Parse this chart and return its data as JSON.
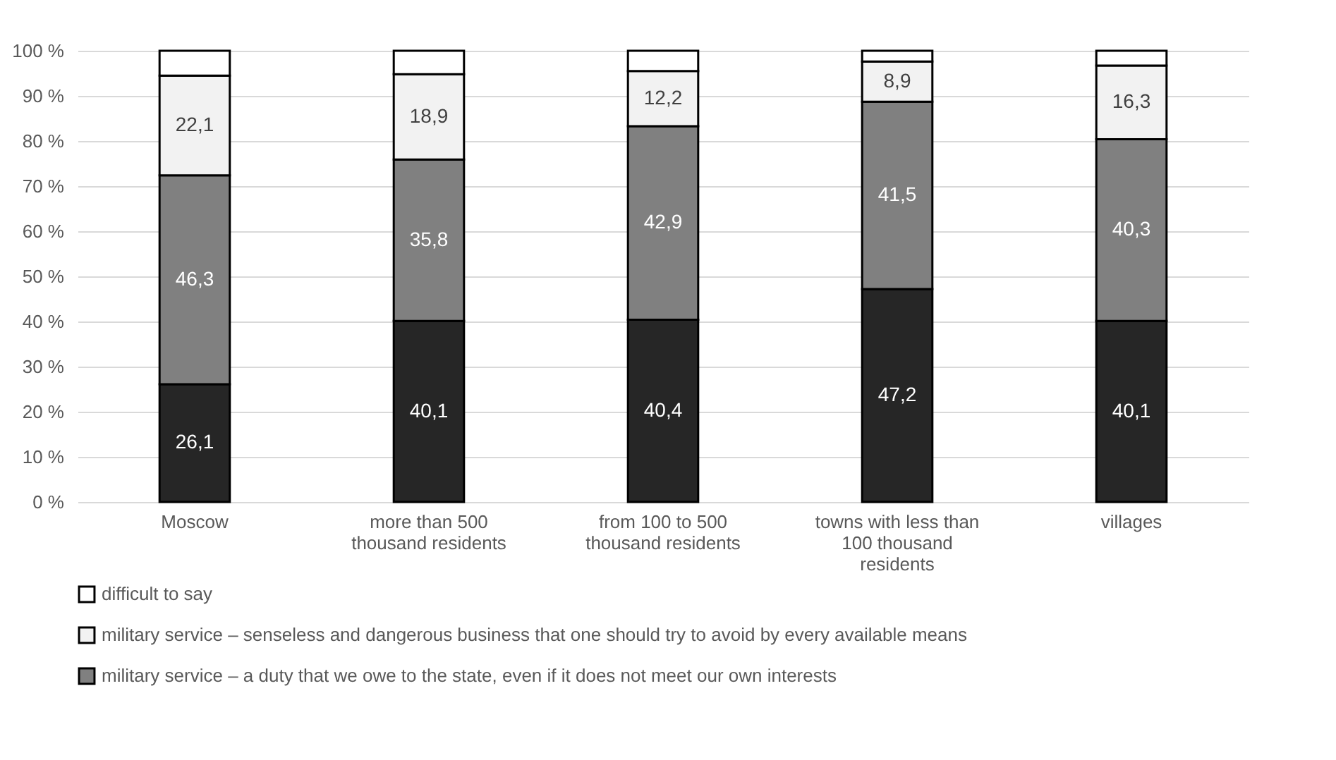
{
  "chart_data": {
    "type": "bar",
    "stacked": true,
    "categories": [
      "Moscow",
      "more than 500 thousand residents",
      "from 100 to 500 thousand residents",
      "towns with less than 100 thousand residents",
      "villages"
    ],
    "series": [
      {
        "color": "#262626",
        "values": [
          26.1,
          40.1,
          40.4,
          47.2,
          40.1
        ],
        "value_labels": [
          "26,1",
          "40,1",
          "40,4",
          "47,2",
          "40,1"
        ]
      },
      {
        "name": "military service – a duty that we owe to the state, even if it does not meet our own interests",
        "color": "#808080",
        "values": [
          46.3,
          35.8,
          42.9,
          41.5,
          40.3
        ],
        "value_labels": [
          "46,3",
          "35,8",
          "42,9",
          "41,5",
          "40,3"
        ]
      },
      {
        "name": "military service – senseless and dangerous business that one should try to avoid by every available means",
        "color": "#f2f2f2",
        "values": [
          22.1,
          18.9,
          12.2,
          8.9,
          16.3
        ],
        "value_labels": [
          "22,1",
          "18,9",
          "12,2",
          "8,9",
          "16,3"
        ]
      },
      {
        "name": "difficult to say",
        "color": "#ffffff",
        "values": [
          5.5,
          5.2,
          4.5,
          2.4,
          3.3
        ]
      }
    ],
    "ylim": [
      0,
      100
    ],
    "yticks": [
      {
        "value": 0,
        "label": "0 %"
      },
      {
        "value": 10,
        "label": "10 %"
      },
      {
        "value": 20,
        "label": "20 %"
      },
      {
        "value": 30,
        "label": "30 %"
      },
      {
        "value": 40,
        "label": "40 %"
      },
      {
        "value": 50,
        "label": "50 %"
      },
      {
        "value": 60,
        "label": "60 %"
      },
      {
        "value": 70,
        "label": "70 %"
      },
      {
        "value": 80,
        "label": "80 %"
      },
      {
        "value": 90,
        "label": "90 %"
      },
      {
        "value": 100,
        "label": "100 %"
      }
    ],
    "grid": "y",
    "legend": "bottom"
  }
}
